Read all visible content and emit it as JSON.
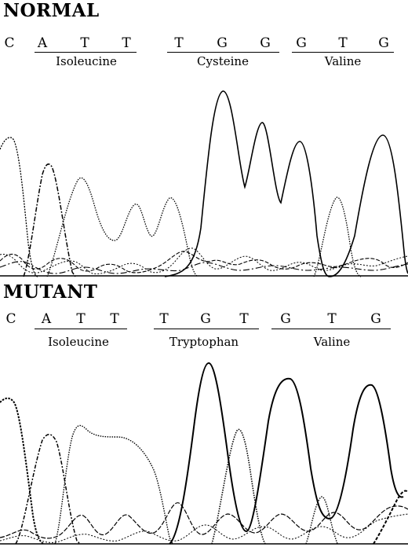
{
  "panels": [
    {
      "id": "normal",
      "title": "NORMAL",
      "bases": [
        "C",
        "A",
        "T",
        "T",
        "T",
        "G",
        "G",
        "G",
        "T",
        "G"
      ],
      "codons": [
        {
          "name": "Isoleucine",
          "bases": [
            "A",
            "T",
            "T"
          ]
        },
        {
          "name": "Cysteine",
          "bases": [
            "T",
            "G",
            "G"
          ]
        },
        {
          "name": "Valine",
          "bases": [
            "G",
            "T",
            "G"
          ]
        }
      ]
    },
    {
      "id": "mutant",
      "title": "MUTANT",
      "bases": [
        "C",
        "A",
        "T",
        "T",
        "T",
        "G",
        "T",
        "G",
        "T",
        "G"
      ],
      "codons": [
        {
          "name": "Isoleucine",
          "bases": [
            "A",
            "T",
            "T"
          ]
        },
        {
          "name": "Tryptophan",
          "bases": [
            "T",
            "G",
            "T"
          ]
        },
        {
          "name": "Valine",
          "bases": [
            "G",
            "T",
            "G"
          ]
        }
      ]
    }
  ]
}
